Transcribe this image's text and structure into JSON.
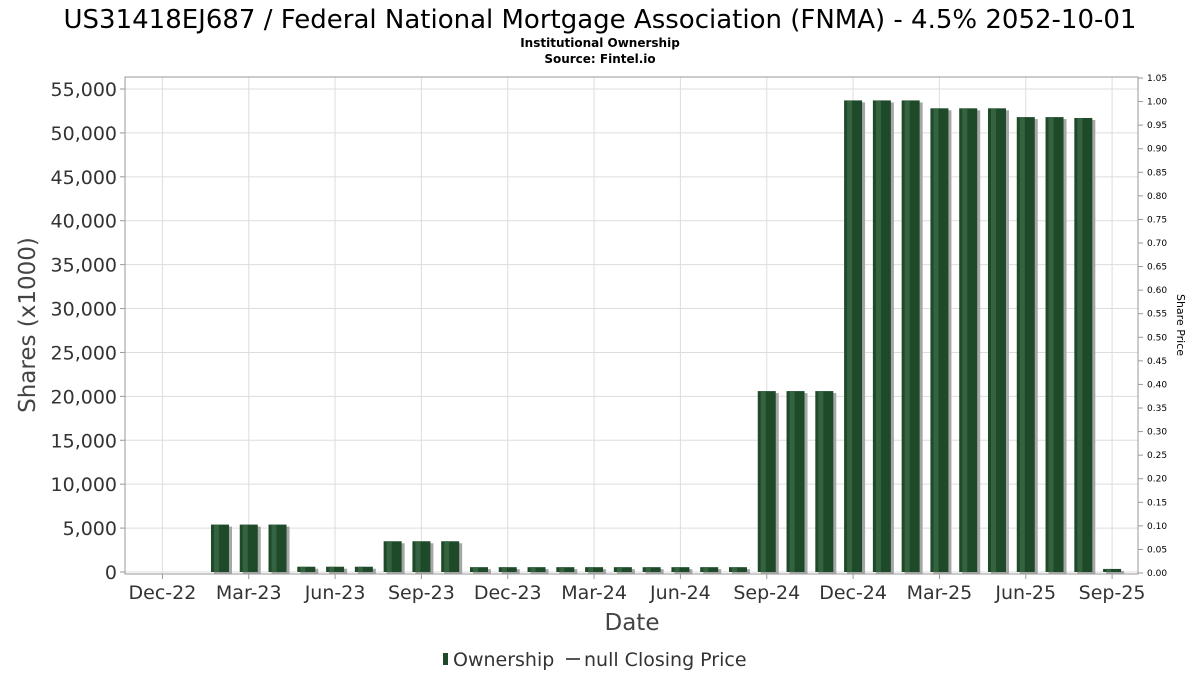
{
  "chart_data": {
    "type": "bar",
    "title": "US31418EJ687 / Federal National Mortgage Association (FNMA) - 4.5% 2052-10-01",
    "subtitle_lines": [
      "Institutional Ownership",
      "Source: Fintel.io"
    ],
    "xlabel": "Date",
    "ylabel": "Shares (x1000)",
    "y2label": "Share Price",
    "ylim": [
      0,
      56500
    ],
    "y2lim": [
      0,
      1.05
    ],
    "yticks": [
      0,
      5000,
      10000,
      15000,
      20000,
      25000,
      30000,
      35000,
      40000,
      45000,
      50000,
      55000
    ],
    "ytick_labels": [
      "0",
      "5,000",
      "10,000",
      "15,000",
      "20,000",
      "25,000",
      "30,000",
      "35,000",
      "40,000",
      "45,000",
      "50,000",
      "55,000"
    ],
    "y2ticks": [
      "0.00",
      "0.05",
      "0.10",
      "0.15",
      "0.20",
      "0.25",
      "0.30",
      "0.35",
      "0.40",
      "0.45",
      "0.50",
      "0.55",
      "0.60",
      "0.65",
      "0.70",
      "0.75",
      "0.80",
      "0.85",
      "0.90",
      "0.95",
      "1.00",
      "1.05"
    ],
    "xtick_labels": [
      "Dec-22",
      "Mar-23",
      "Jun-23",
      "Sep-23",
      "Dec-23",
      "Mar-24",
      "Jun-24",
      "Sep-24",
      "Dec-24",
      "Mar-25",
      "Jun-25",
      "Sep-25"
    ],
    "x_range_months": [
      -1.3,
      33.9
    ],
    "grid": true,
    "legend_position": "bottom-center",
    "series": [
      {
        "name": "Ownership",
        "color": "#1e4a2a",
        "points": [
          {
            "x": "2023-02",
            "value": 5400
          },
          {
            "x": "2023-03",
            "value": 5400
          },
          {
            "x": "2023-04",
            "value": 5400
          },
          {
            "x": "2023-05",
            "value": 600
          },
          {
            "x": "2023-06",
            "value": 600
          },
          {
            "x": "2023-07",
            "value": 600
          },
          {
            "x": "2023-08",
            "value": 3500
          },
          {
            "x": "2023-09",
            "value": 3500
          },
          {
            "x": "2023-10",
            "value": 3500
          },
          {
            "x": "2023-11",
            "value": 550
          },
          {
            "x": "2023-12",
            "value": 550
          },
          {
            "x": "2024-01",
            "value": 550
          },
          {
            "x": "2024-02",
            "value": 550
          },
          {
            "x": "2024-03",
            "value": 550
          },
          {
            "x": "2024-04",
            "value": 550
          },
          {
            "x": "2024-05",
            "value": 550
          },
          {
            "x": "2024-06",
            "value": 550
          },
          {
            "x": "2024-07",
            "value": 550
          },
          {
            "x": "2024-08",
            "value": 550
          },
          {
            "x": "2024-09",
            "value": 20600
          },
          {
            "x": "2024-10",
            "value": 20600
          },
          {
            "x": "2024-11",
            "value": 20600
          },
          {
            "x": "2024-12",
            "value": 53700
          },
          {
            "x": "2025-01",
            "value": 53700
          },
          {
            "x": "2025-02",
            "value": 53700
          },
          {
            "x": "2025-03",
            "value": 52800
          },
          {
            "x": "2025-04",
            "value": 52800
          },
          {
            "x": "2025-05",
            "value": 52800
          },
          {
            "x": "2025-06",
            "value": 51800
          },
          {
            "x": "2025-07",
            "value": 51800
          },
          {
            "x": "2025-08",
            "value": 51700
          },
          {
            "x": "2025-09",
            "value": 350
          }
        ]
      },
      {
        "name": "null Closing Price",
        "color": "#555555",
        "points": []
      }
    ]
  }
}
